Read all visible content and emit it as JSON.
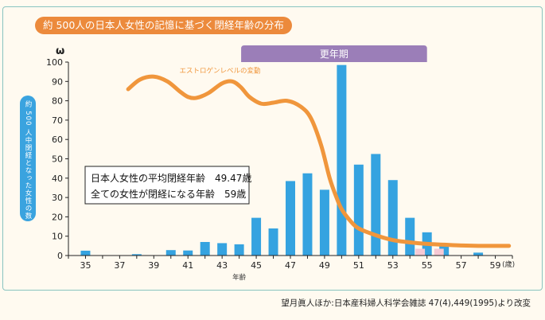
{
  "chart_data": {
    "type": "bar",
    "title": "約 500人の日本人女性の記憶に基づく閉経年齢の分布",
    "ylabel": "約 500 人中閉経となった女性の数",
    "xlabel": "年齢",
    "x_unit": "(歳)",
    "y_axis_mark": "ω",
    "ylim": [
      0,
      100
    ],
    "yticks": [
      0,
      10,
      20,
      30,
      40,
      50,
      60,
      70,
      80,
      90,
      100
    ],
    "xlim": [
      34,
      60
    ],
    "xticks": [
      35,
      37,
      39,
      41,
      43,
      45,
      47,
      49,
      51,
      53,
      55,
      57,
      59
    ],
    "x": [
      35,
      38,
      40,
      41,
      42,
      43,
      44,
      45,
      46,
      47,
      48,
      49,
      50,
      51,
      52,
      53,
      54,
      55,
      56,
      58
    ],
    "values": [
      2.5,
      0.7,
      2.8,
      2.6,
      7,
      6.4,
      5.8,
      19.5,
      14,
      38.5,
      42.5,
      34,
      98.5,
      47,
      52.5,
      39,
      19.5,
      12,
      5.5,
      1.5
    ],
    "pink_bars": [
      {
        "x": 54.6,
        "value": 3.5
      },
      {
        "x": 55.7,
        "value": 3.5
      }
    ],
    "estrogen_curve": {
      "label": "エストロゲンレベルの変動",
      "color": "#f0963c",
      "x": [
        37.5,
        38.2,
        39,
        39.8,
        40.5,
        41,
        41.5,
        42.2,
        43,
        43.6,
        44.1,
        44.6,
        45.3,
        46,
        46.8,
        47.6,
        48.2,
        48.8,
        49.3,
        49.7,
        50,
        50.5,
        51,
        52,
        53,
        54,
        55,
        56,
        57,
        58,
        59.8
      ],
      "y": [
        86,
        91,
        92.5,
        90,
        85,
        82,
        81.5,
        84,
        89,
        90,
        87,
        82,
        78.5,
        79,
        80,
        77,
        71,
        57,
        40,
        30,
        24,
        18,
        14,
        10.5,
        8,
        6.8,
        6,
        5.6,
        5.2,
        5,
        5
      ]
    },
    "menopause_band": {
      "label": "更年期",
      "start": 45,
      "end": 55
    }
  },
  "annotation": {
    "line1": "日本人女性の平均閉経年齢　49.47歳",
    "line2": "全ての女性が閉経になる年齢　59歳"
  },
  "source": "望月眞人ほか:日本産科婦人科学会雑誌 47(4),449(1995)より改変",
  "colors": {
    "bar": "#35a3e0",
    "pink_bar": "#f6c9d4",
    "curve": "#f0963c",
    "band": "#9b7eb8",
    "title_bg": "#ec8a3c",
    "frame": "#89c4c0"
  }
}
